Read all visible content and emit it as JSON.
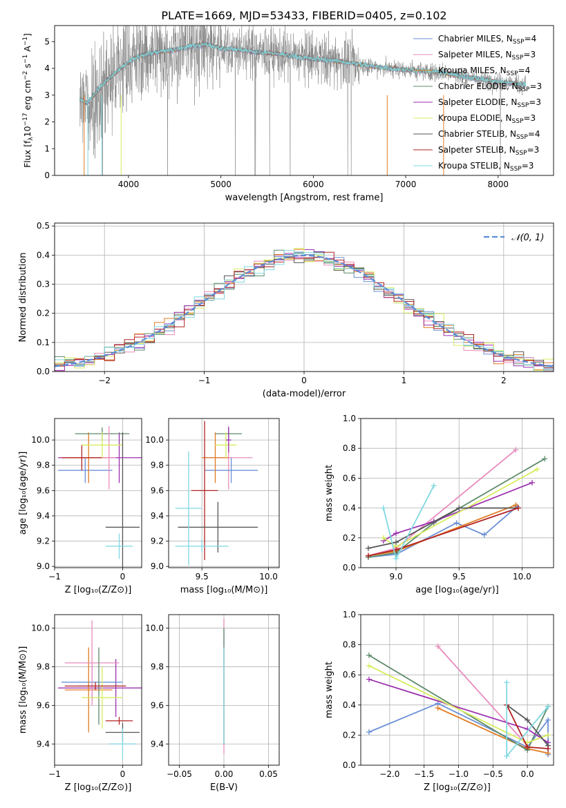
{
  "figure": {
    "title": "PLATE=1669, MJD=53433, FIBERID=0405, z=0.102"
  },
  "legend": [
    {
      "label": "Chabrier MILES, N",
      "sub": "SSP",
      "suffix": "=4",
      "color": "#6a8fd6"
    },
    {
      "label": "Salpeter MILES, N",
      "sub": "SSP",
      "suffix": "=3",
      "color": "#e98bbd"
    },
    {
      "label": "Kroupa MILES, N",
      "sub": "SSP",
      "suffix": "=4",
      "color": "#e07b20"
    },
    {
      "label": "Chabrier ELODIE, N",
      "sub": "SSP",
      "suffix": "=3",
      "color": "#5c8a6a"
    },
    {
      "label": "Salpeter ELODIE, N",
      "sub": "SSP",
      "suffix": "=3",
      "color": "#9b2fae"
    },
    {
      "label": "Kroupa ELODIE, N",
      "sub": "SSP",
      "suffix": "=3",
      "color": "#d6ec5c"
    },
    {
      "label": "Chabrier STELIB, N",
      "sub": "SSP",
      "suffix": "=4",
      "color": "#555555"
    },
    {
      "label": "Salpeter STELIB, N",
      "sub": "SSP",
      "suffix": "=3",
      "color": "#b22222"
    },
    {
      "label": "Kroupa STELIB, N",
      "sub": "SSP",
      "suffix": "=3",
      "color": "#7fd8e0"
    }
  ],
  "chart_data": [
    {
      "id": "spectrum",
      "type": "line",
      "xlabel": "wavelength [Angstrom, rest frame]",
      "ylabel_parts": [
        "Flux [f",
        "λ",
        "10",
        "−17",
        " erg cm",
        "−2",
        " s",
        "−1",
        " A",
        "−1",
        "]"
      ],
      "xlim": [
        3200,
        8600
      ],
      "ylim": [
        0,
        5.6
      ],
      "xticks": [
        4000,
        5000,
        6000,
        7000,
        8000
      ],
      "yticks": [
        0,
        1,
        2,
        3,
        4,
        5
      ],
      "continuum": {
        "x": [
          3470,
          3550,
          3650,
          3750,
          3850,
          3950,
          4050,
          4150,
          4300,
          4500,
          4700,
          4850,
          5000,
          5200,
          5400,
          5600,
          5800,
          6000,
          6200,
          6400,
          6600,
          6800,
          7000,
          7200,
          7400,
          7600,
          7800,
          8000,
          8200,
          8300
        ],
        "y": [
          2.85,
          2.7,
          3.1,
          3.5,
          3.8,
          4.1,
          4.35,
          4.5,
          4.6,
          4.7,
          4.85,
          4.9,
          4.75,
          4.7,
          4.6,
          4.55,
          4.45,
          4.35,
          4.3,
          4.2,
          4.1,
          4.0,
          3.95,
          3.9,
          3.85,
          3.7,
          3.6,
          3.5,
          3.42,
          3.4
        ]
      },
      "data_color": "#808080",
      "model_colors": [
        "#6a8fd6",
        "#e98bbd",
        "#e07b20",
        "#5c8a6a",
        "#9b2fae",
        "#d6ec5c",
        "#555555",
        "#b22222",
        "#7fd8e0"
      ]
    },
    {
      "id": "residuals",
      "type": "bar",
      "xlabel": "(data-model)/error",
      "ylabel": "Normed distribution",
      "xlim": [
        -2.5,
        2.5
      ],
      "ylim": [
        0,
        0.51
      ],
      "xticks": [
        -2,
        -1,
        0,
        1,
        2
      ],
      "yticks": [
        0.0,
        0.1,
        0.2,
        0.3,
        0.4,
        0.5
      ],
      "bin_width": 0.1,
      "gaussian_label": "𝒩(0, 1)",
      "gaussian_color": "#5b8bd6"
    },
    {
      "id": "age-vs-Z",
      "type": "scatter",
      "xlabel": "Z [log₁₀(Z/Z⊙)]",
      "ylabel": "age  [log₁₀(age/yr)]",
      "xlim": [
        -1.0,
        0.28
      ],
      "ylim": [
        8.99,
        10.17
      ],
      "xticks": [
        -1,
        0
      ],
      "yticks": [
        9.0,
        9.2,
        9.4,
        9.6,
        9.8,
        10.0
      ],
      "errorbars": [
        {
          "x": -0.05,
          "y": 9.86,
          "xerr": 0.9,
          "yerr": 0.2,
          "color": "#9b2fae"
        },
        {
          "x": -0.55,
          "y": 9.76,
          "xerr": 0.4,
          "yerr": 0.1,
          "color": "#6a8fd6"
        },
        {
          "x": -0.5,
          "y": 9.86,
          "xerr": 0.3,
          "yerr": 0.2,
          "color": "#e07b20"
        },
        {
          "x": -0.6,
          "y": 9.86,
          "xerr": 0.3,
          "yerr": 0.1,
          "color": "#b22222"
        },
        {
          "x": -0.3,
          "y": 10.05,
          "xerr": 0.4,
          "yerr": 0.05,
          "color": "#5c8a6a"
        },
        {
          "x": -0.2,
          "y": 9.86,
          "xerr": 0.1,
          "yerr": 0.25,
          "color": "#e98bbd"
        },
        {
          "x": -0.3,
          "y": 9.96,
          "xerr": 0.3,
          "yerr": 0.1,
          "color": "#d6ec5c"
        },
        {
          "x": 0.0,
          "y": 9.31,
          "xerr": 0.25,
          "yerr": 0.75,
          "color": "#555555"
        },
        {
          "x": -0.05,
          "y": 9.16,
          "xerr": 0.2,
          "yerr": 0.1,
          "color": "#7fd8e0"
        }
      ]
    },
    {
      "id": "age-vs-mass",
      "type": "scatter",
      "xlabel": "mass [log₁₀(M/M⊙)]",
      "ylabel": "",
      "xlim": [
        9.25,
        10.08
      ],
      "ylim": [
        8.99,
        10.17
      ],
      "xticks": [
        9.5,
        10.0
      ],
      "yticks": [
        9.0,
        9.2,
        9.4,
        9.6,
        9.8,
        10.0
      ],
      "errorbars": [
        {
          "x": 9.7,
          "y": 9.86,
          "xerr": 0.18,
          "yerr": 0.25,
          "color": "#e98bbd"
        },
        {
          "x": 9.72,
          "y": 9.76,
          "xerr": 0.2,
          "yerr": 0.1,
          "color": "#6a8fd6"
        },
        {
          "x": 9.6,
          "y": 9.86,
          "xerr": 0.1,
          "yerr": 0.2,
          "color": "#e07b20"
        },
        {
          "x": 9.7,
          "y": 10.05,
          "xerr": 0.1,
          "yerr": 0.05,
          "color": "#5c8a6a"
        },
        {
          "x": 9.68,
          "y": 9.96,
          "xerr": 0.08,
          "yerr": 0.1,
          "color": "#d6ec5c"
        },
        {
          "x": 9.7,
          "y": 10.0,
          "xerr": 0.02,
          "yerr": 0.1,
          "color": "#9b2fae"
        },
        {
          "x": 9.52,
          "y": 9.6,
          "xerr": 0.1,
          "yerr": 0.55,
          "color": "#b22222"
        },
        {
          "x": 9.62,
          "y": 9.31,
          "xerr": 0.3,
          "yerr": 0.2,
          "color": "#555555"
        },
        {
          "x": 9.4,
          "y": 9.46,
          "xerr": 0.1,
          "yerr": 0.45,
          "color": "#7fd8e0"
        },
        {
          "x": 9.5,
          "y": 9.16,
          "xerr": 0.2,
          "yerr": 0.05,
          "color": "#7fd8e0"
        }
      ]
    },
    {
      "id": "weight-vs-age",
      "type": "line",
      "xlabel": "age  [log₁₀(age/yr)]",
      "ylabel": "mass weight",
      "xlim": [
        8.72,
        10.25
      ],
      "ylim": [
        0,
        1
      ],
      "xticks": [
        9.0,
        9.5,
        10.0
      ],
      "yticks": [
        0.0,
        0.2,
        0.4,
        0.6,
        0.8,
        1.0
      ],
      "series": [
        {
          "color": "#6a8fd6",
          "points": [
            [
              8.78,
              0.07
            ],
            [
              9.0,
              0.09
            ],
            [
              9.48,
              0.3
            ],
            [
              9.7,
              0.22
            ],
            [
              9.96,
              0.41
            ]
          ]
        },
        {
          "color": "#e98bbd",
          "points": [
            [
              8.78,
              0.08
            ],
            [
              9.0,
              0.13
            ],
            [
              9.95,
              0.79
            ]
          ]
        },
        {
          "color": "#e07b20",
          "points": [
            [
              8.78,
              0.08
            ],
            [
              9.0,
              0.11
            ],
            [
              9.95,
              0.42
            ]
          ]
        },
        {
          "color": "#5c8a6a",
          "points": [
            [
              8.78,
              0.07
            ],
            [
              9.0,
              0.1
            ],
            [
              9.3,
              0.3
            ],
            [
              10.18,
              0.73
            ]
          ]
        },
        {
          "color": "#9b2fae",
          "points": [
            [
              8.9,
              0.18
            ],
            [
              9.0,
              0.23
            ],
            [
              9.3,
              0.31
            ],
            [
              10.08,
              0.57
            ]
          ]
        },
        {
          "color": "#d6ec5c",
          "points": [
            [
              8.9,
              0.2
            ],
            [
              9.0,
              0.14
            ],
            [
              10.12,
              0.66
            ]
          ]
        },
        {
          "color": "#555555",
          "points": [
            [
              8.78,
              0.13
            ],
            [
              9.0,
              0.17
            ],
            [
              9.5,
              0.4
            ],
            [
              9.97,
              0.4
            ]
          ]
        },
        {
          "color": "#b22222",
          "points": [
            [
              8.78,
              0.08
            ],
            [
              9.0,
              0.12
            ],
            [
              9.97,
              0.4
            ]
          ]
        },
        {
          "color": "#7fd8e0",
          "points": [
            [
              8.9,
              0.4
            ],
            [
              9.0,
              0.06
            ],
            [
              9.3,
              0.55
            ]
          ]
        }
      ]
    },
    {
      "id": "mass-vs-Z",
      "type": "scatter",
      "xlabel": "Z [log₁₀(Z/Z⊙)]",
      "ylabel": "mass [log₁₀(M/M⊙)]",
      "xlim": [
        -1.0,
        0.28
      ],
      "ylim": [
        9.29,
        10.07
      ],
      "xticks": [
        -1,
        0
      ],
      "yticks": [
        9.4,
        9.6,
        9.8,
        10.0
      ],
      "errorbars": [
        {
          "x": -0.1,
          "y": 9.69,
          "xerr": 0.85,
          "yerr": 0.15,
          "color": "#9b2fae"
        },
        {
          "x": -0.45,
          "y": 9.72,
          "xerr": 0.45,
          "yerr": 0.1,
          "color": "#6a8fd6"
        },
        {
          "x": -0.5,
          "y": 9.68,
          "xerr": 0.35,
          "yerr": 0.22,
          "color": "#e07b20"
        },
        {
          "x": -0.45,
          "y": 9.82,
          "xerr": 0.4,
          "yerr": 0.22,
          "color": "#e98bbd"
        },
        {
          "x": -0.35,
          "y": 9.7,
          "xerr": 0.3,
          "yerr": 0.2,
          "color": "#5c8a6a"
        },
        {
          "x": -0.3,
          "y": 9.64,
          "xerr": 0.3,
          "yerr": 0.16,
          "color": "#d6ec5c"
        },
        {
          "x": -0.4,
          "y": 9.7,
          "xerr": 0.45,
          "yerr": 0.02,
          "color": "#b22222"
        },
        {
          "x": 0.0,
          "y": 9.46,
          "xerr": 0.25,
          "yerr": 0.05,
          "color": "#555555"
        },
        {
          "x": -0.05,
          "y": 9.52,
          "xerr": 0.2,
          "yerr": 0.02,
          "color": "#b22222"
        },
        {
          "x": 0.0,
          "y": 9.4,
          "xerr": 0.2,
          "yerr": 0.08,
          "color": "#7fd8e0"
        }
      ]
    },
    {
      "id": "mass-vs-EBV",
      "type": "scatter",
      "xlabel": "E(B-V)",
      "ylabel": "",
      "xlim": [
        -0.062,
        0.062
      ],
      "ylim": [
        9.29,
        10.07
      ],
      "xticks": [
        -0.05,
        0.0,
        0.05
      ],
      "xtick_labels": [
        "−0.05",
        "0.00",
        "0.05"
      ],
      "yticks": [
        9.4,
        9.6,
        9.8,
        10.0
      ],
      "errorbars": [
        {
          "x": 0.0,
          "y": 9.7,
          "xerr": 0.0,
          "yerr": 0.35,
          "color": "#e98bbd"
        },
        {
          "x": 0.0,
          "y": 9.7,
          "xerr": 0.0,
          "yerr": 0.3,
          "color": "#5c8a6a"
        },
        {
          "x": 0.0,
          "y": 9.65,
          "xerr": 0.0,
          "yerr": 0.25,
          "color": "#7fd8e0"
        }
      ]
    },
    {
      "id": "weight-vs-Z",
      "type": "line",
      "xlabel": "Z [log₁₀(Z/Z⊙)]",
      "ylabel": "mass weight",
      "xlim": [
        -2.42,
        0.38
      ],
      "ylim": [
        0,
        1
      ],
      "xticks": [
        -2.0,
        -1.5,
        -1.0,
        -0.5,
        0.0
      ],
      "xtick_labels": [
        "−2.0",
        "−1.5",
        "−1.0",
        "−0.5",
        "0.0"
      ],
      "yticks": [
        0.0,
        0.2,
        0.4,
        0.6,
        0.8,
        1.0
      ],
      "series": [
        {
          "color": "#6a8fd6",
          "points": [
            [
              -2.3,
              0.22
            ],
            [
              -1.3,
              0.41
            ],
            [
              0.0,
              0.12
            ],
            [
              0.3,
              0.3
            ],
            [
              0.3,
              0.07
            ]
          ]
        },
        {
          "color": "#e98bbd",
          "points": [
            [
              -1.3,
              0.79
            ],
            [
              0.0,
              0.13
            ]
          ]
        },
        {
          "color": "#e07b20",
          "points": [
            [
              -1.3,
              0.38
            ],
            [
              0.0,
              0.11
            ],
            [
              0.3,
              0.08
            ]
          ]
        },
        {
          "color": "#5c8a6a",
          "points": [
            [
              -2.3,
              0.73
            ],
            [
              0.0,
              0.1
            ],
            [
              0.3,
              0.39
            ]
          ]
        },
        {
          "color": "#9b2fae",
          "points": [
            [
              -2.3,
              0.57
            ],
            [
              0.0,
              0.24
            ],
            [
              0.3,
              0.15
            ]
          ]
        },
        {
          "color": "#d6ec5c",
          "points": [
            [
              -2.3,
              0.66
            ],
            [
              0.0,
              0.15
            ],
            [
              0.3,
              0.2
            ]
          ]
        },
        {
          "color": "#555555",
          "points": [
            [
              -0.3,
              0.4
            ],
            [
              0.0,
              0.3
            ],
            [
              0.3,
              0.13
            ]
          ]
        },
        {
          "color": "#b22222",
          "points": [
            [
              -0.3,
              0.4
            ],
            [
              0.0,
              0.12
            ],
            [
              0.3,
              0.11
            ]
          ]
        },
        {
          "color": "#7fd8e0",
          "points": [
            [
              -0.3,
              0.55
            ],
            [
              -0.3,
              0.06
            ],
            [
              0.3,
              0.39
            ]
          ]
        }
      ]
    }
  ]
}
